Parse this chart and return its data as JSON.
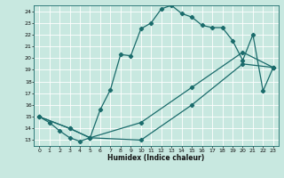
{
  "xlabel": "Humidex (Indice chaleur)",
  "xlim": [
    -0.5,
    23.5
  ],
  "ylim": [
    12.5,
    24.5
  ],
  "xticks": [
    0,
    1,
    2,
    3,
    4,
    5,
    6,
    7,
    8,
    9,
    10,
    11,
    12,
    13,
    14,
    15,
    16,
    17,
    18,
    19,
    20,
    21,
    22,
    23
  ],
  "yticks": [
    13,
    14,
    15,
    16,
    17,
    18,
    19,
    20,
    21,
    22,
    23,
    24
  ],
  "bg_color": "#c8e8e0",
  "grid_color": "#ffffff",
  "line_color": "#1a6b6b",
  "line1_x": [
    0,
    1,
    2,
    3,
    4,
    5,
    6,
    7,
    8,
    9,
    10,
    11,
    12,
    13,
    14,
    15,
    16,
    17,
    18,
    19,
    20,
    21,
    22,
    23
  ],
  "line1_y": [
    15.0,
    14.5,
    13.8,
    13.2,
    12.9,
    13.2,
    15.6,
    17.3,
    20.3,
    20.2,
    22.5,
    23.0,
    24.2,
    24.5,
    23.8,
    23.5,
    22.8,
    22.6,
    22.6,
    21.5,
    19.8,
    22.0,
    17.2,
    19.2
  ],
  "line2_x": [
    0,
    3,
    5,
    10,
    15,
    20,
    23
  ],
  "line2_y": [
    15.0,
    14.0,
    13.2,
    14.5,
    17.5,
    20.5,
    19.2
  ],
  "line3_x": [
    0,
    3,
    5,
    10,
    15,
    20,
    23
  ],
  "line3_y": [
    15.0,
    14.0,
    13.2,
    13.0,
    16.0,
    19.5,
    19.2
  ]
}
